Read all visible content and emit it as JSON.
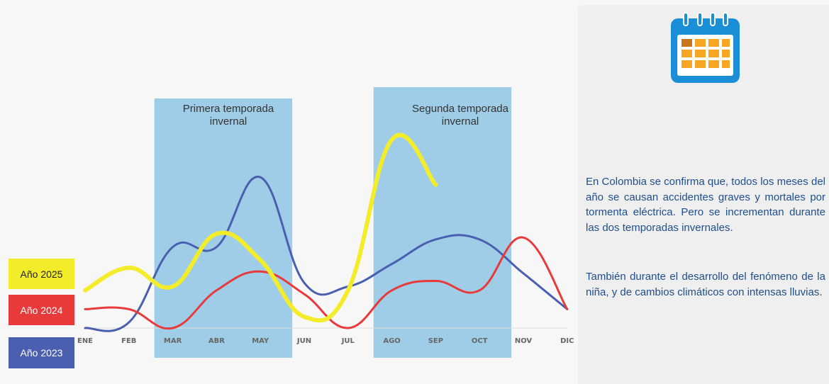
{
  "chart_data": {
    "type": "line",
    "title": "",
    "xlabel": "",
    "ylabel": "",
    "categories": [
      "ENE",
      "FEB",
      "MAR",
      "ABR",
      "MAY",
      "JUN",
      "JUL",
      "AGO",
      "SEP",
      "OCT",
      "NOV",
      "DIC"
    ],
    "ylim": [
      0,
      100
    ],
    "grid": false,
    "legend_placement": "left",
    "series": [
      {
        "name": "Año 2023",
        "color": "#4a5fb0",
        "values": [
          0,
          3,
          43,
          43,
          80,
          24,
          22,
          34,
          47,
          47,
          29,
          10
        ]
      },
      {
        "name": "Año 2024",
        "color": "#e83a3a",
        "values": [
          10,
          10,
          0,
          20,
          30,
          18,
          0,
          20,
          25,
          20,
          48,
          10
        ]
      },
      {
        "name": "Año 2025",
        "color": "#f2ec2a",
        "values": [
          20,
          32,
          22,
          50,
          36,
          6,
          20,
          100,
          76,
          null,
          null,
          null
        ]
      }
    ],
    "annotations": [
      {
        "text": "Primera temporada invernal",
        "x_from": "MAR",
        "x_to": "MAY"
      },
      {
        "text": "Segunda temporada invernal",
        "x_from": "AGO",
        "x_to": "OCT"
      }
    ]
  },
  "panel": {
    "icon": "calendar-icon",
    "paragraph1": "En Colombia se confirma que, todos los meses del año se causan accidentes graves y mortales por tormenta eléctrica. Pero se incrementan durante las dos temporadas invernales.",
    "paragraph2": "También durante el desarrollo del fenómeno de la niña, y de cambios climáticos con intensas lluvias."
  },
  "colors": {
    "season_band": "#9fcde8",
    "panel_text": "#1f4e8c",
    "calendar_blue": "#1a8fd8",
    "calendar_orange": "#f6a623"
  }
}
